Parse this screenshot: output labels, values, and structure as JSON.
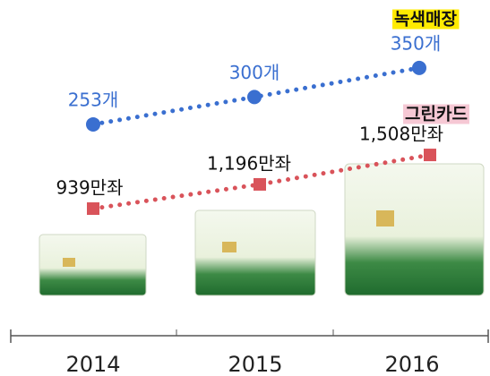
{
  "chart_data": {
    "type": "line",
    "categories": [
      "2014",
      "2015",
      "2016"
    ],
    "series": [
      {
        "name": "녹색매장",
        "color": "#3a6fd0",
        "values": [
          253,
          300,
          350
        ],
        "value_labels": [
          "253개",
          "300개",
          "350개"
        ]
      },
      {
        "name": "그린카드",
        "color": "#d9535a",
        "values": [
          939,
          1196,
          1508
        ],
        "value_labels": [
          "939만좌",
          "1,196만좌",
          "1,508만좌"
        ]
      }
    ]
  }
}
